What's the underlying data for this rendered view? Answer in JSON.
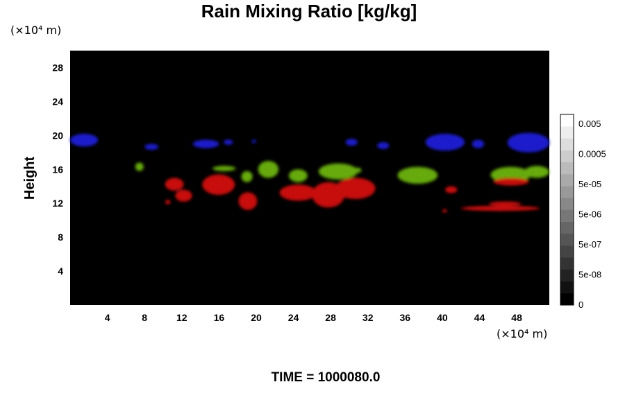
{
  "chart_data": {
    "type": "heatmap",
    "title": "Rain Mixing Ratio [kg/kg]",
    "ylabel": "Height",
    "xunit": "(×10⁴ m)",
    "yunit": "(×10⁴ m)",
    "xlim": [
      0,
      51.5
    ],
    "ylim": [
      0,
      30
    ],
    "xticks": [
      4,
      8,
      12,
      16,
      20,
      24,
      28,
      32,
      36,
      40,
      44,
      48
    ],
    "yticks": [
      4,
      8,
      12,
      16,
      20,
      24,
      28
    ],
    "background_color": "#000000",
    "colorbar": {
      "labels": [
        "0",
        "5e-08",
        "5e-07",
        "5e-06",
        "5e-05",
        "0.0005",
        "0.005"
      ],
      "levels": 16,
      "colors": [
        "#000000",
        "#ffffff"
      ]
    },
    "time_label": "TIME = 1000080.0",
    "regions": [
      {
        "color": "#1a1acc",
        "blobs": [
          {
            "x": 0.0,
            "y": 18.7,
            "w": 3.0,
            "h": 1.5
          },
          {
            "x": 8.0,
            "y": 18.3,
            "w": 1.5,
            "h": 0.7
          },
          {
            "x": 13.2,
            "y": 18.5,
            "w": 2.8,
            "h": 1.0
          },
          {
            "x": 16.5,
            "y": 18.9,
            "w": 1.0,
            "h": 0.6
          },
          {
            "x": 19.5,
            "y": 19.1,
            "w": 0.5,
            "h": 0.4
          },
          {
            "x": 29.6,
            "y": 18.8,
            "w": 1.3,
            "h": 0.8
          },
          {
            "x": 33.0,
            "y": 18.4,
            "w": 1.3,
            "h": 0.8
          },
          {
            "x": 38.2,
            "y": 18.2,
            "w": 4.2,
            "h": 2.0
          },
          {
            "x": 43.2,
            "y": 18.5,
            "w": 1.3,
            "h": 1.0
          },
          {
            "x": 47.0,
            "y": 18.0,
            "w": 4.5,
            "h": 2.3
          }
        ]
      },
      {
        "color": "#66aa11",
        "blobs": [
          {
            "x": 7.0,
            "y": 15.8,
            "w": 0.9,
            "h": 1.0
          },
          {
            "x": 15.3,
            "y": 15.8,
            "w": 2.5,
            "h": 0.6
          },
          {
            "x": 18.4,
            "y": 14.5,
            "w": 1.2,
            "h": 1.3
          },
          {
            "x": 20.2,
            "y": 15.0,
            "w": 2.2,
            "h": 2.0
          },
          {
            "x": 23.5,
            "y": 14.5,
            "w": 2.0,
            "h": 1.5
          },
          {
            "x": 26.7,
            "y": 14.8,
            "w": 4.2,
            "h": 1.9
          },
          {
            "x": 30.5,
            "y": 15.6,
            "w": 0.8,
            "h": 0.6
          },
          {
            "x": 35.2,
            "y": 14.3,
            "w": 4.3,
            "h": 2.0
          },
          {
            "x": 45.2,
            "y": 14.4,
            "w": 4.3,
            "h": 1.9
          },
          {
            "x": 48.8,
            "y": 15.0,
            "w": 2.7,
            "h": 1.4
          }
        ]
      },
      {
        "color": "#c81010",
        "blobs": [
          {
            "x": 10.2,
            "y": 13.5,
            "w": 2.0,
            "h": 1.5
          },
          {
            "x": 11.3,
            "y": 12.2,
            "w": 1.8,
            "h": 1.4
          },
          {
            "x": 10.2,
            "y": 11.9,
            "w": 0.6,
            "h": 0.5
          },
          {
            "x": 14.2,
            "y": 13.0,
            "w": 3.5,
            "h": 2.4
          },
          {
            "x": 18.1,
            "y": 11.2,
            "w": 2.0,
            "h": 2.1
          },
          {
            "x": 22.5,
            "y": 12.3,
            "w": 4.0,
            "h": 1.9
          },
          {
            "x": 26.0,
            "y": 11.5,
            "w": 3.5,
            "h": 3.0
          },
          {
            "x": 28.5,
            "y": 12.5,
            "w": 4.3,
            "h": 2.5
          },
          {
            "x": 40.3,
            "y": 13.2,
            "w": 1.3,
            "h": 0.8
          },
          {
            "x": 42.0,
            "y": 11.1,
            "w": 8.5,
            "h": 0.6
          },
          {
            "x": 45.0,
            "y": 11.7,
            "w": 3.5,
            "h": 0.5
          },
          {
            "x": 45.5,
            "y": 14.1,
            "w": 3.8,
            "h": 0.9
          },
          {
            "x": 40.0,
            "y": 10.9,
            "w": 0.5,
            "h": 0.4
          }
        ]
      }
    ]
  }
}
